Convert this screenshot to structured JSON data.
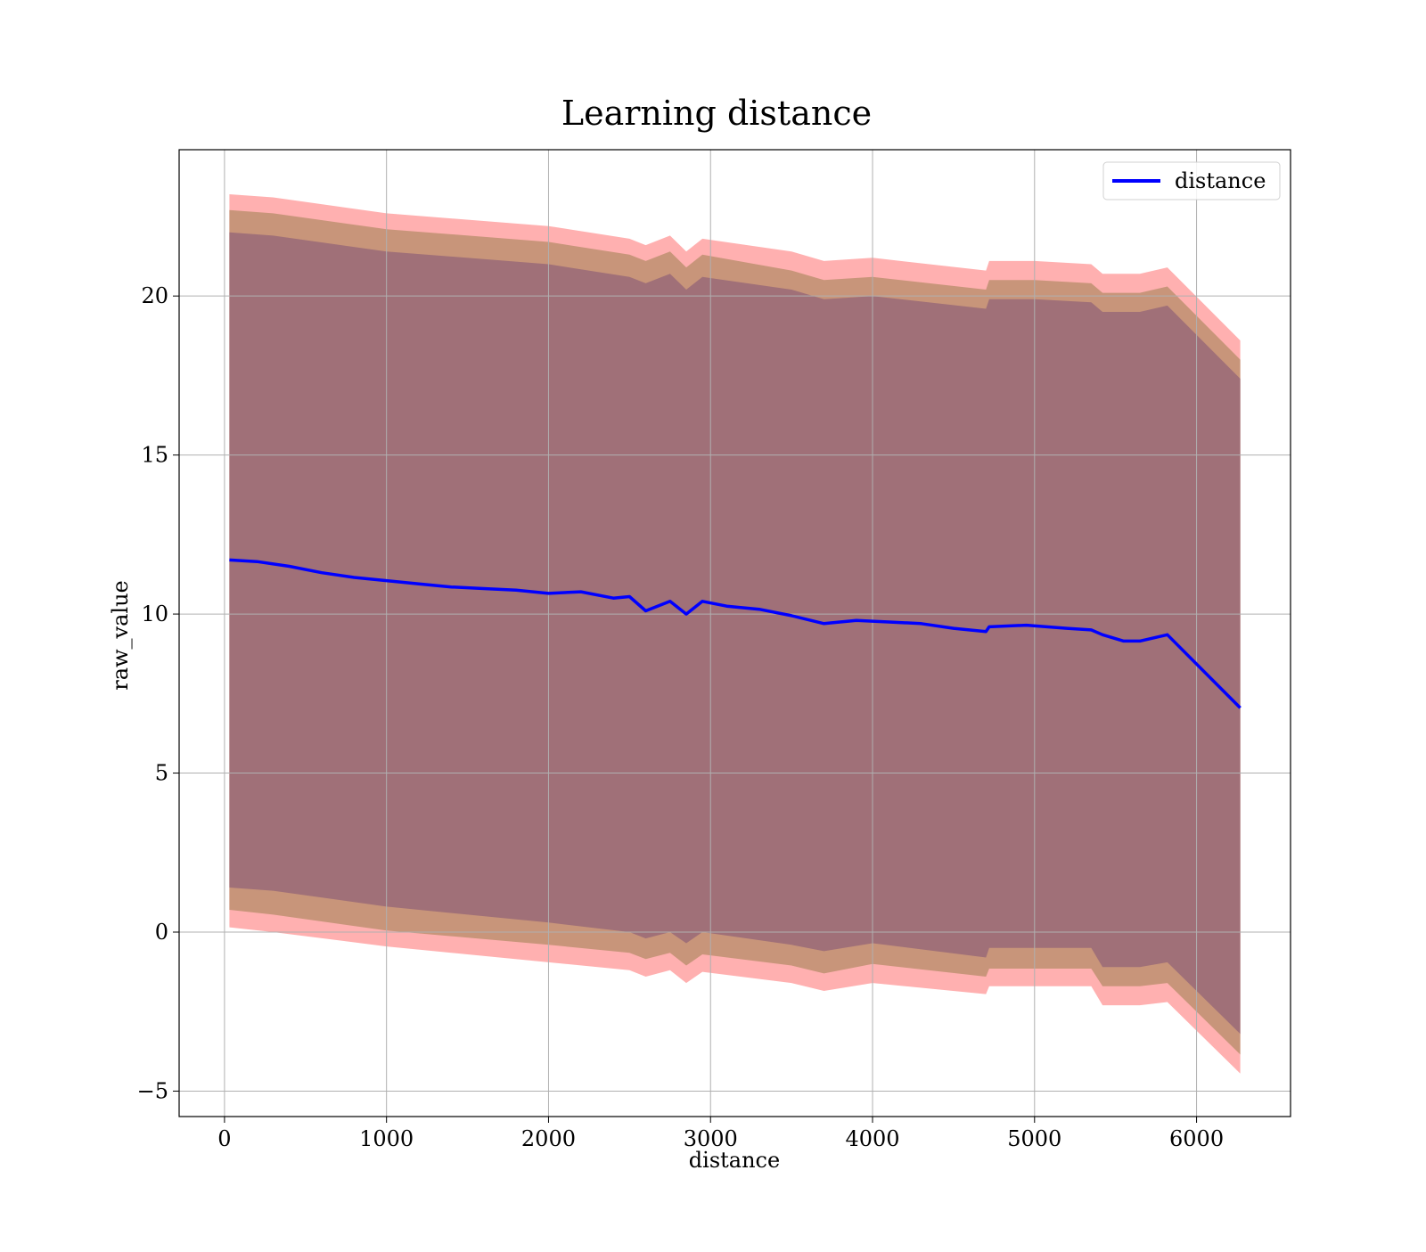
{
  "chart_data": {
    "type": "line",
    "title": "Learning distance",
    "xlabel": "distance",
    "ylabel": "raw_value",
    "xlim": [
      -280,
      6580
    ],
    "ylim": [
      -5.8,
      24.6
    ],
    "xticks": [
      0,
      1000,
      2000,
      3000,
      4000,
      5000,
      6000
    ],
    "xtick_labels": [
      "0",
      "1000",
      "2000",
      "3000",
      "4000",
      "5000",
      "6000"
    ],
    "yticks": [
      -5,
      0,
      5,
      10,
      15,
      20
    ],
    "ytick_labels": [
      "−5",
      "0",
      "5",
      "10",
      "15",
      "20"
    ],
    "grid": true,
    "legend": {
      "position": "top-right",
      "entries": [
        "distance"
      ]
    },
    "colors": {
      "line": "#0000ff",
      "band_outer": "#ffb0b0",
      "band_middle": "#c8957a",
      "band_inner": "#a07078",
      "grid": "#b0b0b0"
    },
    "series": [
      {
        "name": "distance",
        "x": [
          30,
          200,
          400,
          600,
          800,
          1000,
          1200,
          1400,
          1600,
          1800,
          2000,
          2200,
          2400,
          2500,
          2600,
          2750,
          2850,
          2950,
          3100,
          3300,
          3500,
          3700,
          3900,
          4100,
          4300,
          4500,
          4700,
          4720,
          4950,
          5200,
          5350,
          5420,
          5550,
          5650,
          5820,
          6270
        ],
        "y": [
          11.7,
          11.65,
          11.5,
          11.3,
          11.15,
          11.05,
          10.95,
          10.85,
          10.8,
          10.75,
          10.65,
          10.7,
          10.5,
          10.55,
          10.1,
          10.4,
          10.0,
          10.4,
          10.25,
          10.15,
          9.95,
          9.7,
          9.8,
          9.75,
          9.7,
          9.55,
          9.45,
          9.6,
          9.65,
          9.55,
          9.5,
          9.35,
          9.15,
          9.15,
          9.35,
          7.05
        ]
      }
    ],
    "bands": [
      {
        "label": "outer",
        "x": [
          30,
          300,
          1000,
          2000,
          2500,
          2600,
          2750,
          2850,
          2950,
          3500,
          3700,
          4000,
          4700,
          4720,
          5000,
          5350,
          5420,
          5650,
          5820,
          6270
        ],
        "upper": [
          23.2,
          23.1,
          22.6,
          22.2,
          21.8,
          21.6,
          21.9,
          21.4,
          21.8,
          21.4,
          21.1,
          21.2,
          20.8,
          21.1,
          21.1,
          21.0,
          20.7,
          20.7,
          20.9,
          18.6
        ],
        "lower": [
          0.15,
          0.0,
          -0.45,
          -0.95,
          -1.2,
          -1.4,
          -1.2,
          -1.6,
          -1.25,
          -1.6,
          -1.85,
          -1.6,
          -1.95,
          -1.7,
          -1.7,
          -1.7,
          -2.3,
          -2.3,
          -2.2,
          -4.45
        ]
      },
      {
        "label": "middle",
        "x": [
          30,
          300,
          1000,
          2000,
          2500,
          2600,
          2750,
          2850,
          2950,
          3500,
          3700,
          4000,
          4700,
          4720,
          5000,
          5350,
          5420,
          5650,
          5820,
          6270
        ],
        "upper": [
          22.7,
          22.6,
          22.1,
          21.7,
          21.3,
          21.1,
          21.4,
          20.9,
          21.3,
          20.8,
          20.5,
          20.6,
          20.2,
          20.5,
          20.5,
          20.4,
          20.1,
          20.1,
          20.3,
          18.0
        ],
        "lower": [
          0.7,
          0.55,
          0.05,
          -0.4,
          -0.65,
          -0.85,
          -0.65,
          -1.05,
          -0.7,
          -1.05,
          -1.3,
          -1.0,
          -1.4,
          -1.15,
          -1.15,
          -1.15,
          -1.7,
          -1.7,
          -1.6,
          -3.85
        ]
      },
      {
        "label": "inner",
        "x": [
          30,
          300,
          1000,
          2000,
          2500,
          2600,
          2750,
          2850,
          2950,
          3500,
          3700,
          4000,
          4700,
          4720,
          5000,
          5350,
          5420,
          5650,
          5820,
          6270
        ],
        "upper": [
          22.0,
          21.9,
          21.4,
          21.0,
          20.6,
          20.4,
          20.7,
          20.2,
          20.6,
          20.2,
          19.9,
          20.0,
          19.6,
          19.9,
          19.9,
          19.8,
          19.5,
          19.5,
          19.7,
          17.4
        ],
        "lower": [
          1.4,
          1.3,
          0.8,
          0.3,
          0.0,
          -0.2,
          0.0,
          -0.35,
          0.0,
          -0.4,
          -0.6,
          -0.35,
          -0.8,
          -0.5,
          -0.5,
          -0.5,
          -1.1,
          -1.1,
          -0.95,
          -3.2
        ]
      }
    ]
  }
}
